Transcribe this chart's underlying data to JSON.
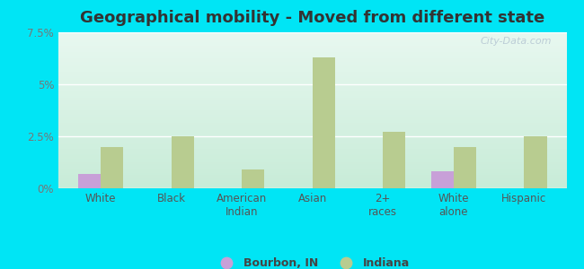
{
  "title": "Geographical mobility - Moved from different state",
  "categories": [
    "White",
    "Black",
    "American\nIndian",
    "Asian",
    "2+\nraces",
    "White\nalone",
    "Hispanic"
  ],
  "bourbon_values": [
    0.7,
    0.0,
    0.0,
    0.0,
    0.0,
    0.8,
    0.0
  ],
  "indiana_values": [
    2.0,
    2.5,
    0.9,
    6.3,
    2.7,
    2.0,
    2.5
  ],
  "bourbon_color": "#c8a0d8",
  "indiana_color": "#b8cc90",
  "plot_bg_top": "#e8f8f0",
  "plot_bg_bottom": "#c8ecd8",
  "outer_background": "#00e5f5",
  "ylim_max": 7.5,
  "yticks": [
    0.0,
    2.5,
    5.0,
    7.5
  ],
  "ytick_labels": [
    "0%",
    "2.5%",
    "5%",
    "7.5%"
  ],
  "legend_bourbon": "Bourbon, IN",
  "legend_indiana": "Indiana",
  "bar_width": 0.32,
  "title_fontsize": 13,
  "tick_fontsize": 8.5,
  "legend_fontsize": 9,
  "grid_color": "#e0e8e0",
  "watermark_text": "City-Data.com"
}
